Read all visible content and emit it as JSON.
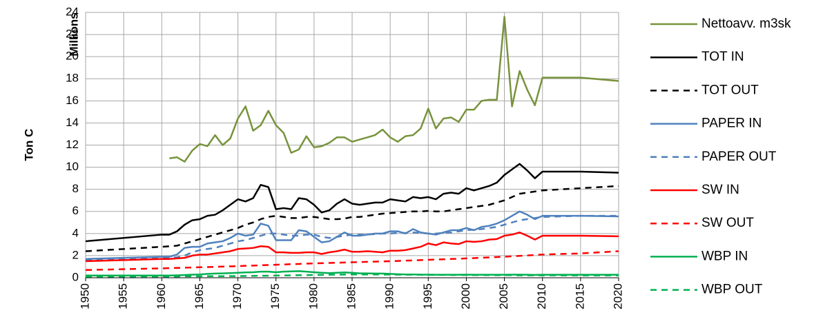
{
  "chart_data": {
    "type": "line",
    "ylabel": "Ton C",
    "yunit_label": "Millions",
    "x": [
      1950,
      1960,
      1961,
      1962,
      1963,
      1964,
      1965,
      1966,
      1967,
      1968,
      1969,
      1970,
      1971,
      1972,
      1973,
      1974,
      1975,
      1976,
      1977,
      1978,
      1979,
      1980,
      1981,
      1982,
      1983,
      1984,
      1985,
      1986,
      1987,
      1988,
      1989,
      1990,
      1991,
      1992,
      1993,
      1994,
      1995,
      1996,
      1997,
      1998,
      1999,
      2000,
      2001,
      2002,
      2003,
      2004,
      2005,
      2006,
      2007,
      2008,
      2009,
      2010,
      2015,
      2020
    ],
    "xlim": [
      1950,
      2020
    ],
    "xticks": [
      1950,
      1955,
      1960,
      1965,
      1970,
      1975,
      1980,
      1985,
      1990,
      1995,
      2000,
      2005,
      2010,
      2015,
      2020
    ],
    "ylim": [
      0,
      24
    ],
    "yticks": [
      0,
      2,
      4,
      6,
      8,
      10,
      12,
      14,
      16,
      18,
      20,
      22,
      24
    ],
    "grid": true,
    "legend": "right",
    "series": [
      {
        "name": "Nettoavv. m3sk",
        "color": "#77933c",
        "dashed": false,
        "values": [
          null,
          null,
          10.8,
          10.9,
          10.5,
          11.5,
          12.1,
          11.9,
          12.9,
          12.0,
          12.6,
          14.4,
          15.5,
          13.3,
          13.8,
          15.1,
          13.8,
          13.1,
          11.3,
          11.6,
          12.8,
          11.8,
          11.9,
          12.2,
          12.7,
          12.7,
          12.3,
          12.5,
          12.7,
          12.9,
          13.4,
          12.7,
          12.3,
          12.8,
          12.9,
          13.5,
          15.3,
          13.5,
          14.4,
          14.5,
          14.1,
          15.2,
          15.2,
          16.0,
          16.1,
          16.1,
          23.6,
          15.5,
          18.7,
          17.0,
          15.6,
          18.1,
          18.1,
          17.8
        ]
      },
      {
        "name": "TOT IN",
        "color": "#000000",
        "dashed": false,
        "values": [
          3.3,
          3.9,
          3.9,
          4.2,
          4.8,
          5.2,
          5.3,
          5.6,
          5.7,
          6.1,
          6.6,
          7.1,
          6.9,
          7.2,
          8.4,
          8.2,
          6.2,
          6.3,
          6.2,
          7.2,
          7.1,
          6.6,
          5.9,
          6.1,
          6.7,
          7.1,
          6.7,
          6.6,
          6.7,
          6.8,
          6.8,
          7.1,
          7.0,
          6.9,
          7.3,
          7.2,
          7.3,
          7.1,
          7.6,
          7.7,
          7.6,
          8.1,
          7.9,
          8.1,
          8.3,
          8.6,
          9.3,
          9.8,
          10.3,
          9.7,
          9.0,
          9.6,
          9.6,
          9.5
        ]
      },
      {
        "name": "TOT OUT",
        "color": "#000000",
        "dashed": true,
        "values": [
          2.4,
          2.8,
          2.85,
          2.9,
          3.1,
          3.3,
          3.5,
          3.7,
          3.9,
          4.1,
          4.3,
          4.5,
          4.8,
          5.0,
          5.3,
          5.5,
          5.6,
          5.5,
          5.4,
          5.4,
          5.5,
          5.5,
          5.4,
          5.3,
          5.3,
          5.35,
          5.5,
          5.5,
          5.6,
          5.7,
          5.8,
          5.85,
          5.9,
          5.95,
          6.0,
          6.0,
          6.05,
          6.0,
          6.0,
          6.1,
          6.2,
          6.3,
          6.4,
          6.5,
          6.6,
          6.8,
          7.0,
          7.3,
          7.6,
          7.7,
          7.8,
          7.9,
          8.1,
          8.3
        ]
      },
      {
        "name": "PAPER IN",
        "color": "#4f81bd",
        "dashed": false,
        "values": [
          1.7,
          1.9,
          1.9,
          2.1,
          2.7,
          2.8,
          2.8,
          3.1,
          3.2,
          3.3,
          3.6,
          4.0,
          3.8,
          3.9,
          4.9,
          4.7,
          3.4,
          3.4,
          3.4,
          4.3,
          4.2,
          3.7,
          3.2,
          3.3,
          3.7,
          4.1,
          3.8,
          3.8,
          3.9,
          4.0,
          4.0,
          4.2,
          4.2,
          4.0,
          4.4,
          4.1,
          4.0,
          3.9,
          4.1,
          4.3,
          4.3,
          4.5,
          4.3,
          4.6,
          4.7,
          4.9,
          5.2,
          5.6,
          6.0,
          5.7,
          5.3,
          5.6,
          5.6,
          5.55
        ]
      },
      {
        "name": "PAPER OUT",
        "color": "#4f81bd",
        "dashed": true,
        "values": [
          1.6,
          1.8,
          1.8,
          1.85,
          2.0,
          2.3,
          2.5,
          2.6,
          2.7,
          2.9,
          3.1,
          3.3,
          3.4,
          3.6,
          3.8,
          4.0,
          4.0,
          3.9,
          3.8,
          3.8,
          3.9,
          3.9,
          3.7,
          3.6,
          3.7,
          3.8,
          3.9,
          3.9,
          3.9,
          3.95,
          4.0,
          4.0,
          4.05,
          4.05,
          4.1,
          4.05,
          4.0,
          4.0,
          4.05,
          4.1,
          4.2,
          4.3,
          4.35,
          4.4,
          4.5,
          4.6,
          4.8,
          5.0,
          5.2,
          5.3,
          5.4,
          5.5,
          5.6,
          5.6
        ]
      },
      {
        "name": "SW IN",
        "color": "#ff0000",
        "dashed": false,
        "values": [
          1.5,
          1.7,
          1.7,
          1.75,
          1.8,
          2.0,
          2.1,
          2.1,
          2.2,
          2.3,
          2.4,
          2.6,
          2.65,
          2.7,
          2.85,
          2.8,
          2.3,
          2.3,
          2.25,
          2.25,
          2.3,
          2.3,
          2.15,
          2.3,
          2.4,
          2.55,
          2.35,
          2.35,
          2.4,
          2.35,
          2.3,
          2.45,
          2.45,
          2.5,
          2.65,
          2.8,
          3.1,
          2.95,
          3.2,
          3.1,
          3.05,
          3.3,
          3.25,
          3.3,
          3.45,
          3.5,
          3.8,
          3.9,
          4.1,
          3.8,
          3.45,
          3.8,
          3.8,
          3.75
        ]
      },
      {
        "name": "SW OUT",
        "color": "#ff0000",
        "dashed": true,
        "values": [
          0.7,
          0.85,
          0.87,
          0.89,
          0.91,
          0.93,
          0.95,
          0.97,
          0.99,
          1.01,
          1.03,
          1.05,
          1.08,
          1.1,
          1.13,
          1.15,
          1.18,
          1.2,
          1.23,
          1.25,
          1.28,
          1.3,
          1.32,
          1.34,
          1.36,
          1.38,
          1.4,
          1.42,
          1.44,
          1.46,
          1.48,
          1.5,
          1.52,
          1.55,
          1.57,
          1.6,
          1.62,
          1.65,
          1.67,
          1.7,
          1.72,
          1.75,
          1.78,
          1.81,
          1.84,
          1.87,
          1.9,
          1.94,
          1.98,
          2.02,
          2.06,
          2.1,
          2.2,
          2.4
        ]
      },
      {
        "name": "WBP IN",
        "color": "#00b050",
        "dashed": false,
        "values": [
          0.2,
          0.2,
          0.2,
          0.22,
          0.25,
          0.28,
          0.3,
          0.35,
          0.38,
          0.4,
          0.42,
          0.45,
          0.48,
          0.5,
          0.55,
          0.55,
          0.5,
          0.55,
          0.58,
          0.6,
          0.55,
          0.5,
          0.45,
          0.42,
          0.45,
          0.48,
          0.45,
          0.4,
          0.4,
          0.38,
          0.38,
          0.35,
          0.32,
          0.3,
          0.3,
          0.28,
          0.28,
          0.27,
          0.27,
          0.27,
          0.27,
          0.28,
          0.27,
          0.27,
          0.27,
          0.27,
          0.27,
          0.28,
          0.28,
          0.27,
          0.26,
          0.27,
          0.27,
          0.27
        ]
      },
      {
        "name": "WBP OUT",
        "color": "#00b050",
        "dashed": true,
        "values": [
          0.1,
          0.12,
          0.12,
          0.12,
          0.13,
          0.13,
          0.13,
          0.14,
          0.14,
          0.14,
          0.15,
          0.15,
          0.16,
          0.17,
          0.18,
          0.19,
          0.2,
          0.21,
          0.22,
          0.23,
          0.24,
          0.25,
          0.26,
          0.27,
          0.28,
          0.29,
          0.3,
          0.3,
          0.3,
          0.3,
          0.29,
          0.29,
          0.28,
          0.28,
          0.27,
          0.27,
          0.26,
          0.26,
          0.26,
          0.25,
          0.25,
          0.25,
          0.24,
          0.24,
          0.24,
          0.23,
          0.23,
          0.23,
          0.22,
          0.22,
          0.22,
          0.22,
          0.21,
          0.21
        ]
      }
    ]
  }
}
